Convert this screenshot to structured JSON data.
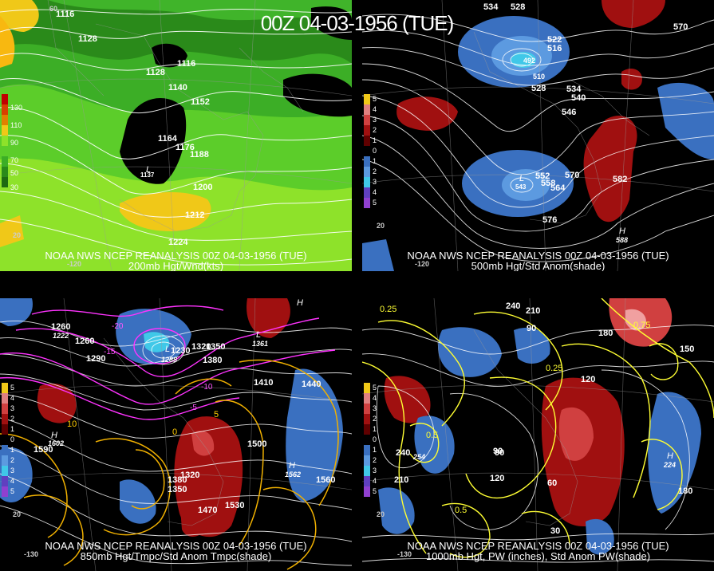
{
  "title": "00Z 04-03-1956 (TUE)",
  "panels": {
    "p200": {
      "caption1": "NOAA NWS NCEP REANALYSIS 00Z 04-03-1956 (TUE)",
      "caption2": "200mb Hgt/Wnd(kts)",
      "colorbar": [
        "130",
        "110",
        "90",
        "70",
        "50",
        "30"
      ],
      "labels": [
        "1116",
        "1128",
        "1116",
        "1128",
        "1140",
        "1152",
        "1164",
        "1176",
        "1188",
        "1200",
        "1212",
        "1224",
        "1137",
        "-120",
        "20",
        "60"
      ]
    },
    "p500": {
      "caption1": "NOAA NWS NCEP REANALYSIS 00Z 04-03-1956 (TUE)",
      "caption2": "500mb Hgt/Std Anom(shade)",
      "colorbar": [
        "5",
        "4",
        "3",
        "2",
        "1",
        "0",
        "1",
        "2",
        "3",
        "4",
        "5"
      ],
      "labels": [
        "534",
        "528",
        "570",
        "522",
        "516",
        "492",
        "510",
        "528",
        "534",
        "540",
        "546",
        "552",
        "558",
        "564",
        "570",
        "576",
        "582",
        "588",
        "543",
        "-120",
        "20"
      ]
    },
    "p850": {
      "caption1": "NOAA NWS NCEP REANALYSIS 00Z 04-03-1956 (TUE)",
      "caption2": "850mb Hgt/Tmpc/Std Anom Tmpc(shade)",
      "colorbar": [
        "5",
        "4",
        "3",
        "2",
        "1",
        "0",
        "1",
        "2",
        "3",
        "4",
        "5"
      ],
      "labels": [
        "1260",
        "1222",
        "1260",
        "1290",
        "1230",
        "1320",
        "1350",
        "1380",
        "1410",
        "1440",
        "1500",
        "1530",
        "1560",
        "1590",
        "1470",
        "1380",
        "1350",
        "1320",
        "1361",
        "1602",
        "1562",
        "1288",
        "-20",
        "-15",
        "-10",
        "-5",
        "0",
        "5",
        "10",
        "-130",
        "20"
      ]
    },
    "p1000": {
      "caption1": "NOAA NWS NCEP REANALYSIS 00Z 04-03-1956 (TUE)",
      "caption2": "1000mb Hgt, PW (inches), Std Anom PW(shade)",
      "colorbar": [
        "5",
        "4",
        "3",
        "2",
        "1",
        "0",
        "1",
        "2",
        "3",
        "4",
        "5"
      ],
      "labels": [
        "0.25",
        "240",
        "210",
        "90",
        "180",
        "150",
        "120",
        "90",
        "60",
        "30",
        "210",
        "180",
        "240",
        "0.5",
        "0.25",
        "0.5",
        "120",
        "90",
        "224",
        "254",
        "0.75",
        "-130",
        "20"
      ]
    }
  }
}
